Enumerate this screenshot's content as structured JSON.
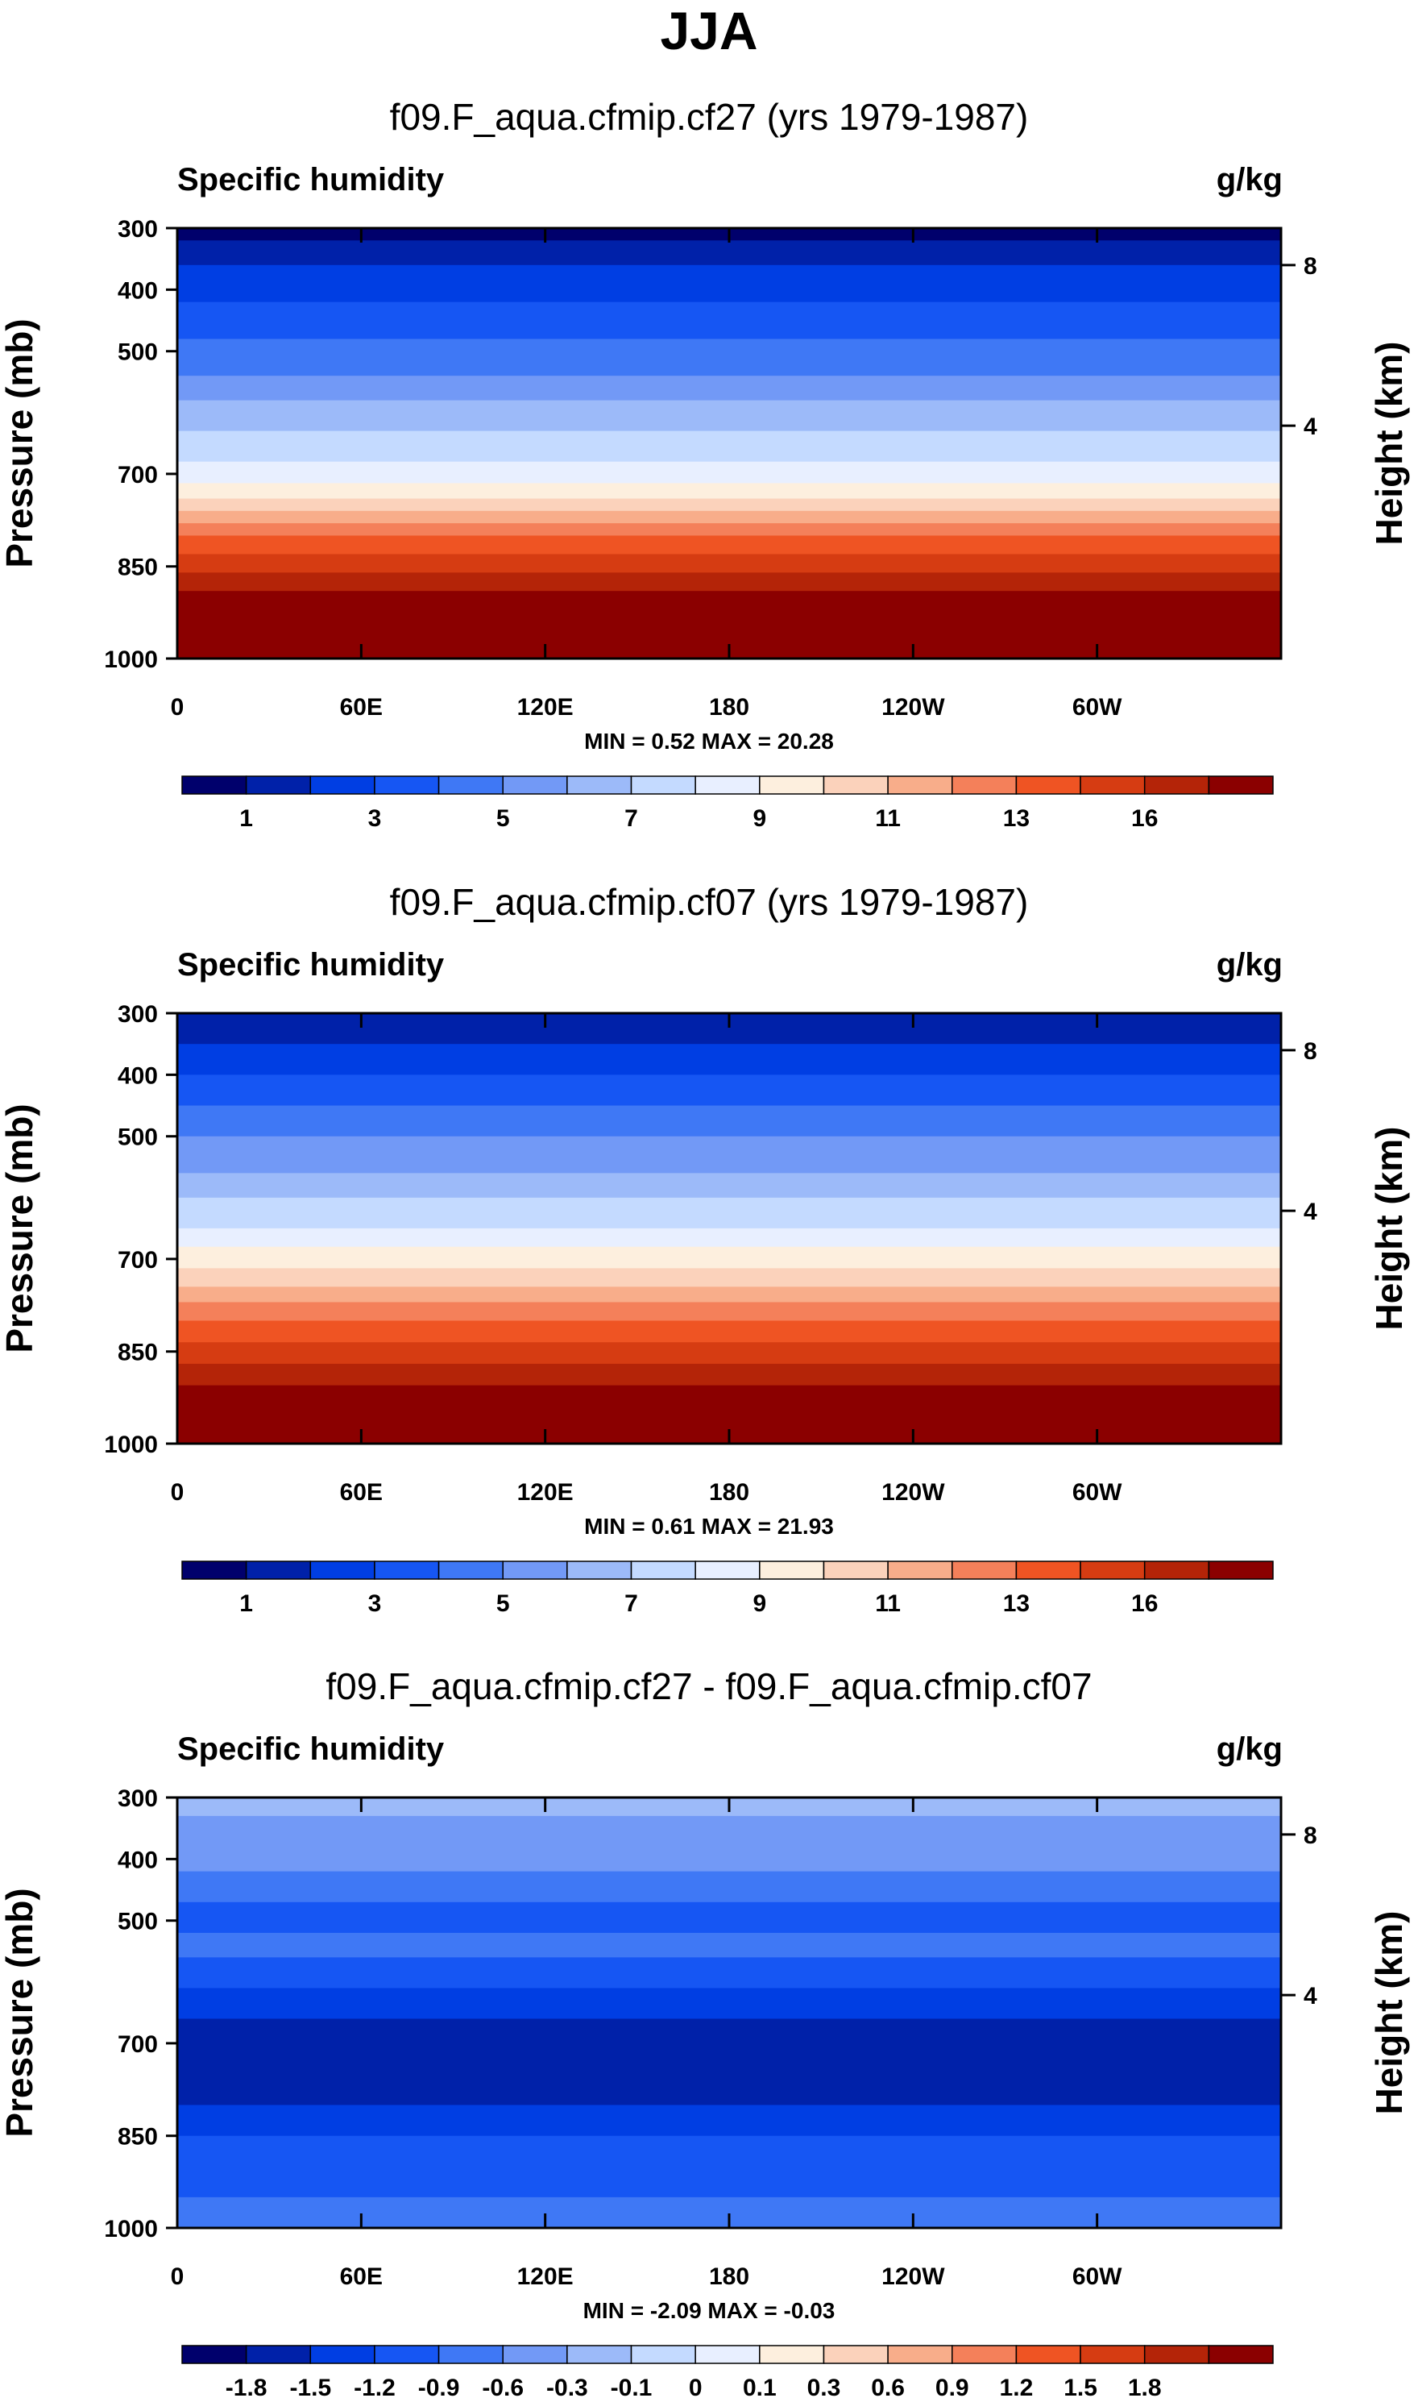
{
  "title": "JJA",
  "colors": {
    "frame": "#000000",
    "humidity_palette": [
      "#00006c",
      "#0021a9",
      "#003ee3",
      "#1656f3",
      "#3f78f5",
      "#7299f6",
      "#9cbaf9",
      "#c4daff",
      "#e8efff",
      "#fdefde",
      "#fbd2bb",
      "#f8ad8a",
      "#f4805a",
      "#ef5423",
      "#d63c12",
      "#b42408",
      "#8b0000"
    ],
    "diff_palette": [
      "#00006c",
      "#0021a9",
      "#003ee3",
      "#1656f3",
      "#3f78f5",
      "#7299f6",
      "#9cbaf9",
      "#c4daff",
      "#e8efff",
      "#fdefde",
      "#fbd2bb",
      "#f8ad8a",
      "#f4805a",
      "#ef5423",
      "#d63c12",
      "#b42408",
      "#8b0000"
    ]
  },
  "chart_data": [
    {
      "type": "heatmap",
      "title": "f09.F_aqua.cfmip.cf27 (yrs 1979-1987)",
      "left_label": "Specific humidity",
      "right_label": "g/kg",
      "xlabel": "",
      "ylabel": "Pressure (mb)",
      "y2label": "Height (km)",
      "x_ticks": [
        "0",
        "60E",
        "120E",
        "180",
        "120W",
        "60W"
      ],
      "y_ticks": [
        "300",
        "400",
        "500",
        "700",
        "850",
        "1000"
      ],
      "y2_ticks": [
        "8",
        "4"
      ],
      "ylim": [
        300,
        1000
      ],
      "stats": "MIN =   0.52  MAX =  20.28",
      "min": 0.52,
      "max": 20.28,
      "colorbar_levels": [
        0.5,
        1,
        2,
        3,
        4,
        5,
        6,
        7,
        8,
        9,
        10,
        11,
        12,
        13,
        14,
        16
      ],
      "colorbar_labels": [
        "1",
        "3",
        "5",
        "7",
        "9",
        "11",
        "13",
        "16"
      ],
      "level_profile": [
        {
          "pressure": 300,
          "value": 0.4
        },
        {
          "pressure": 320,
          "value": 0.6
        },
        {
          "pressure": 360,
          "value": 1.4
        },
        {
          "pressure": 420,
          "value": 2.4
        },
        {
          "pressure": 480,
          "value": 3.4
        },
        {
          "pressure": 540,
          "value": 4.4
        },
        {
          "pressure": 580,
          "value": 5.4
        },
        {
          "pressure": 630,
          "value": 6.4
        },
        {
          "pressure": 680,
          "value": 7.4
        },
        {
          "pressure": 715,
          "value": 8.4
        },
        {
          "pressure": 740,
          "value": 9.4
        },
        {
          "pressure": 760,
          "value": 10.4
        },
        {
          "pressure": 780,
          "value": 11.4
        },
        {
          "pressure": 800,
          "value": 12.4
        },
        {
          "pressure": 830,
          "value": 13.4
        },
        {
          "pressure": 860,
          "value": 14.4
        },
        {
          "pressure": 890,
          "value": 16.4
        },
        {
          "pressure": 1000,
          "value": 19.8
        }
      ]
    },
    {
      "type": "heatmap",
      "title": "f09.F_aqua.cfmip.cf07 (yrs 1979-1987)",
      "left_label": "Specific humidity",
      "right_label": "g/kg",
      "xlabel": "",
      "ylabel": "Pressure (mb)",
      "y2label": "Height (km)",
      "x_ticks": [
        "0",
        "60E",
        "120E",
        "180",
        "120W",
        "60W"
      ],
      "y_ticks": [
        "300",
        "400",
        "500",
        "700",
        "850",
        "1000"
      ],
      "y2_ticks": [
        "8",
        "4"
      ],
      "ylim": [
        300,
        1000
      ],
      "stats": "MIN =   0.61  MAX =  21.93",
      "min": 0.61,
      "max": 21.93,
      "colorbar_levels": [
        0.5,
        1,
        2,
        3,
        4,
        5,
        6,
        7,
        8,
        9,
        10,
        11,
        12,
        13,
        14,
        16
      ],
      "colorbar_labels": [
        "1",
        "3",
        "5",
        "7",
        "9",
        "11",
        "13",
        "16"
      ],
      "level_profile": [
        {
          "pressure": 300,
          "value": 0.5
        },
        {
          "pressure": 310,
          "value": 0.7
        },
        {
          "pressure": 350,
          "value": 1.7
        },
        {
          "pressure": 400,
          "value": 2.7
        },
        {
          "pressure": 450,
          "value": 3.7
        },
        {
          "pressure": 500,
          "value": 4.7
        },
        {
          "pressure": 560,
          "value": 5.7
        },
        {
          "pressure": 600,
          "value": 6.7
        },
        {
          "pressure": 650,
          "value": 7.7
        },
        {
          "pressure": 680,
          "value": 8.7
        },
        {
          "pressure": 715,
          "value": 9.7
        },
        {
          "pressure": 745,
          "value": 10.7
        },
        {
          "pressure": 770,
          "value": 11.7
        },
        {
          "pressure": 800,
          "value": 12.7
        },
        {
          "pressure": 835,
          "value": 13.7
        },
        {
          "pressure": 870,
          "value": 14.7
        },
        {
          "pressure": 905,
          "value": 16.7
        },
        {
          "pressure": 1000,
          "value": 21.5
        }
      ]
    },
    {
      "type": "heatmap",
      "title": "f09.F_aqua.cfmip.cf27 - f09.F_aqua.cfmip.cf07",
      "left_label": "Specific humidity",
      "right_label": "g/kg",
      "xlabel": "",
      "ylabel": "Pressure (mb)",
      "y2label": "Height (km)",
      "x_ticks": [
        "0",
        "60E",
        "120E",
        "180",
        "120W",
        "60W"
      ],
      "y_ticks": [
        "300",
        "400",
        "500",
        "700",
        "850",
        "1000"
      ],
      "y2_ticks": [
        "8",
        "4"
      ],
      "ylim": [
        300,
        1000
      ],
      "stats": "MIN =  -2.09  MAX =  -0.03",
      "min": -2.09,
      "max": -0.03,
      "colorbar_levels": [
        -1.8,
        -1.5,
        -1.2,
        -0.9,
        -0.6,
        -0.3,
        -0.1,
        0,
        0.1,
        0.3,
        0.6,
        0.9,
        1.2,
        1.5,
        1.8
      ],
      "colorbar_labels": [
        "-1.8",
        "-1.5",
        "-1.2",
        "-0.9",
        "-0.6",
        "-0.3",
        "-0.1",
        "0",
        "0.1",
        "0.3",
        "0.6",
        "0.9",
        "1.2",
        "1.5",
        "1.8"
      ],
      "level_profile": [
        {
          "pressure": 300,
          "value": -0.2
        },
        {
          "pressure": 330,
          "value": -0.35
        },
        {
          "pressure": 380,
          "value": -0.45
        },
        {
          "pressure": 420,
          "value": -0.75
        },
        {
          "pressure": 470,
          "value": -1.05
        },
        {
          "pressure": 520,
          "value": -0.75
        },
        {
          "pressure": 560,
          "value": -1.05
        },
        {
          "pressure": 610,
          "value": -1.35
        },
        {
          "pressure": 660,
          "value": -1.65
        },
        {
          "pressure": 740,
          "value": -1.65
        },
        {
          "pressure": 800,
          "value": -1.35
        },
        {
          "pressure": 850,
          "value": -1.05
        },
        {
          "pressure": 950,
          "value": -0.75
        },
        {
          "pressure": 1000,
          "value": -0.75
        }
      ]
    }
  ]
}
